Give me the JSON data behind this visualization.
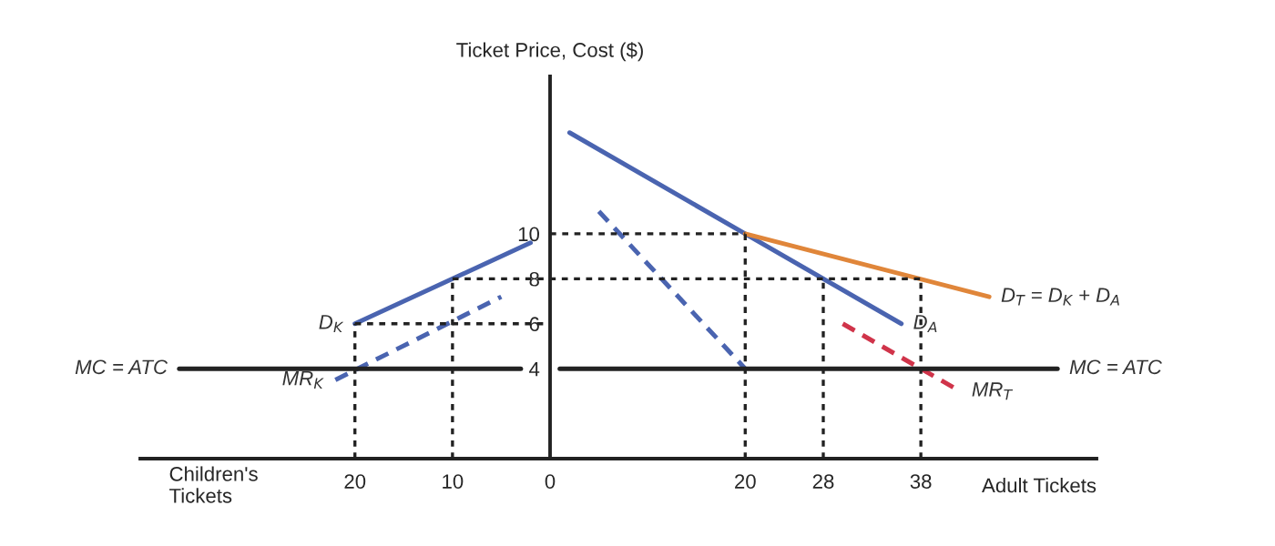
{
  "chart_data": {
    "type": "line",
    "ylabel": "Ticket Price, Cost ($)",
    "xlabel": "Adult Tickets",
    "annotations": [
      "Children's\nTickets"
    ],
    "xlim": [
      -42,
      56
    ],
    "ylim": [
      0,
      17
    ],
    "xticks": [
      {
        "value": -20,
        "label": "20"
      },
      {
        "value": -10,
        "label": "10"
      },
      0,
      20,
      28,
      38
    ],
    "yticks": [
      4,
      6,
      8,
      10
    ],
    "grid": false,
    "legend": false,
    "marker": "none",
    "series": [
      {
        "name": "D$_{K}$",
        "color": "#4a64b0",
        "line_style": "solid",
        "x": [
          -20,
          -2
        ],
        "values": [
          6,
          9.6
        ]
      },
      {
        "name": "MR$_{K}$",
        "color": "#4a64b0",
        "line_style": "dashed",
        "x": [
          -22,
          -5
        ],
        "values": [
          3.5,
          7.2
        ]
      },
      {
        "name": "MC = ATC",
        "color": "#222222",
        "line_style": "solid",
        "x": [
          -38,
          -3
        ],
        "values": [
          4,
          4
        ]
      },
      {
        "name": "D$_{A}$",
        "color": "#4a64b0",
        "line_style": "solid",
        "x": [
          2,
          36
        ],
        "values": [
          14.5,
          6
        ]
      },
      {
        "color": "#4a64b0",
        "line_style": "dashed",
        "x": [
          5,
          20
        ],
        "values": [
          11,
          4
        ]
      },
      {
        "name": "D$_{T}$ = D$_{K}$ + D$_{A}$",
        "color": "#e0863a",
        "line_style": "solid",
        "x": [
          20,
          45
        ],
        "values": [
          10,
          7.2
        ]
      },
      {
        "name": "MR$_{T}$",
        "color": "#d0344a",
        "line_style": "dashed",
        "x": [
          30,
          42
        ],
        "values": [
          6,
          3
        ]
      },
      {
        "name": "MC = ATC",
        "color": "#222222",
        "line_style": "solid",
        "x": [
          1,
          52
        ],
        "values": [
          4,
          4
        ]
      },
      {
        "color": "#222222",
        "line_style": "dotted",
        "x": [
          0,
          20
        ],
        "values": [
          10,
          10
        ]
      },
      {
        "color": "#222222",
        "line_style": "dotted",
        "x": [
          -10,
          38
        ],
        "values": [
          8,
          8
        ]
      },
      {
        "color": "#222222",
        "line_style": "dotted",
        "x": [
          -20,
          0
        ],
        "values": [
          6,
          6
        ]
      },
      {
        "color": "#222222",
        "line_style": "dotted",
        "x": [
          -20,
          -20
        ],
        "values": [
          0,
          6
        ]
      },
      {
        "color": "#222222",
        "line_style": "dotted",
        "x": [
          -10,
          -10
        ],
        "values": [
          0,
          8
        ]
      },
      {
        "color": "#222222",
        "line_style": "dotted",
        "x": [
          20,
          20
        ],
        "values": [
          0,
          10
        ]
      },
      {
        "color": "#222222",
        "line_style": "dotted",
        "x": [
          28,
          28
        ],
        "values": [
          0,
          8
        ]
      },
      {
        "color": "#222222",
        "line_style": "dotted",
        "x": [
          38,
          38
        ],
        "values": [
          0,
          8
        ]
      }
    ]
  }
}
